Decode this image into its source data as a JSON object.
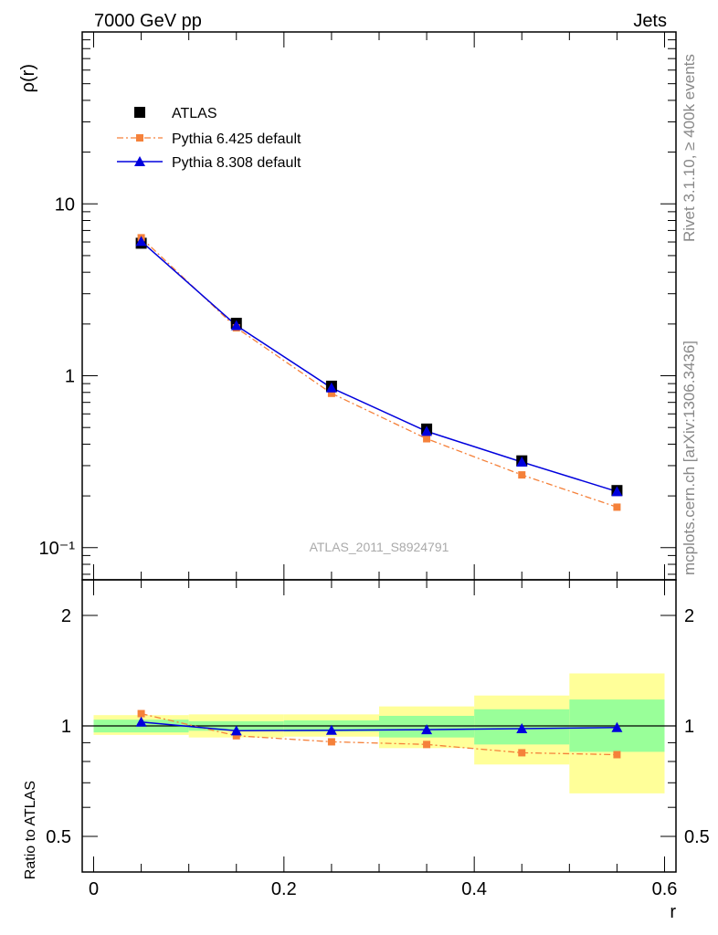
{
  "header": {
    "left_title": "7000 GeV pp",
    "right_title": "Jets"
  },
  "side_labels": {
    "rivet": "Rivet 3.1.10, ≥ 400k events",
    "mcplots": "mcplots.cern.ch [arXiv:1306.3436]"
  },
  "watermark": "ATLAS_2011_S8924791",
  "colors": {
    "atlas": "#000000",
    "pythia6": "#f5813a",
    "pythia8": "#0000dd",
    "band_inner": "#99ff99",
    "band_outer": "#ffff99"
  },
  "chart_data": [
    {
      "type": "line",
      "panel": "main",
      "xlabel": "",
      "ylabel": "ρ(r)",
      "yscale": "log",
      "xlim": [
        -0.012,
        0.612
      ],
      "ylim": [
        0.065,
        100
      ],
      "y_tick_labels": [
        "10⁻¹",
        "1",
        "10"
      ],
      "y_tick_values": [
        0.1,
        1,
        10
      ],
      "legend_position": "top-left",
      "x": [
        0.05,
        0.15,
        0.25,
        0.35,
        0.45,
        0.55
      ],
      "series": [
        {
          "name": "ATLAS",
          "style": "markers",
          "values": [
            5.9,
            2.02,
            0.87,
            0.49,
            0.32,
            0.215
          ]
        },
        {
          "name": "Pythia 6.425 default",
          "style": "dash-dot-square",
          "values": [
            6.35,
            1.9,
            0.79,
            0.43,
            0.265,
            0.172
          ]
        },
        {
          "name": "Pythia 8.308 default",
          "style": "solid-triangle",
          "values": [
            6.05,
            1.96,
            0.85,
            0.475,
            0.315,
            0.212
          ]
        }
      ]
    },
    {
      "type": "line",
      "panel": "ratio",
      "xlabel": "r",
      "ylabel": "Ratio to ATLAS",
      "xlim": [
        -0.012,
        0.612
      ],
      "ylim": [
        0.4,
        2.5
      ],
      "x_tick_labels": [
        "0",
        "0.2",
        "0.4",
        "0.6"
      ],
      "x_tick_values": [
        0,
        0.2,
        0.4,
        0.6
      ],
      "y_tick_labels": [
        "0.5",
        "1",
        "2"
      ],
      "y_tick_values": [
        0.5,
        1,
        2
      ],
      "bins": [
        [
          0,
          0.1
        ],
        [
          0.1,
          0.2
        ],
        [
          0.2,
          0.3
        ],
        [
          0.3,
          0.4
        ],
        [
          0.4,
          0.5
        ],
        [
          0.5,
          0.6
        ]
      ],
      "band_inner": [
        [
          0.96,
          1.04
        ],
        [
          0.97,
          1.03
        ],
        [
          0.965,
          1.035
        ],
        [
          0.93,
          1.065
        ],
        [
          0.89,
          1.11
        ],
        [
          0.85,
          1.18
        ]
      ],
      "band_outer": [
        [
          0.945,
          1.07
        ],
        [
          0.93,
          1.075
        ],
        [
          0.935,
          1.075
        ],
        [
          0.87,
          1.13
        ],
        [
          0.785,
          1.21
        ],
        [
          0.655,
          1.39
        ]
      ],
      "x": [
        0.05,
        0.15,
        0.25,
        0.35,
        0.45,
        0.55
      ],
      "series": [
        {
          "name": "Pythia 6.425 default",
          "values": [
            1.08,
            0.94,
            0.905,
            0.89,
            0.845,
            0.835
          ]
        },
        {
          "name": "Pythia 8.308 default",
          "values": [
            1.025,
            0.97,
            0.973,
            0.977,
            0.983,
            0.99
          ]
        }
      ]
    }
  ]
}
